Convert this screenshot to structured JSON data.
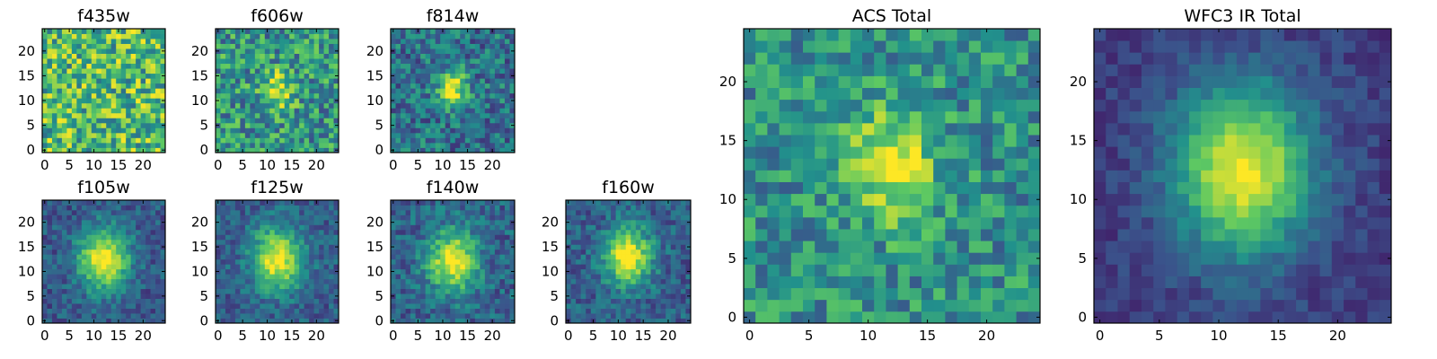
{
  "figure": {
    "colormap": "viridis",
    "colormap_stops": [
      "#440154",
      "#3b528b",
      "#21918c",
      "#5ec962",
      "#fde725"
    ],
    "background": "#ffffff"
  },
  "chart_data": [
    {
      "type": "heatmap",
      "title": "f435w",
      "grid": [
        25,
        25
      ],
      "xlim": [
        -0.5,
        24.5
      ],
      "ylim": [
        -0.5,
        24.5
      ],
      "xticks": [
        "0",
        "5",
        "10",
        "15",
        "20"
      ],
      "yticks": [
        "0",
        "5",
        "10",
        "15",
        "20"
      ],
      "source_center": [
        12,
        12
      ],
      "peak_level": 0.95,
      "background_level": 0.68,
      "noise": 0.32,
      "source_width": 0.5
    },
    {
      "type": "heatmap",
      "title": "f606w",
      "grid": [
        25,
        25
      ],
      "xlim": [
        -0.5,
        24.5
      ],
      "ylim": [
        -0.5,
        24.5
      ],
      "xticks": [
        "0",
        "5",
        "10",
        "15",
        "20"
      ],
      "yticks": [
        "0",
        "5",
        "10",
        "15",
        "20"
      ],
      "source_center": [
        12,
        12
      ],
      "peak_level": 0.95,
      "background_level": 0.52,
      "noise": 0.28,
      "source_width": 2.2
    },
    {
      "type": "heatmap",
      "title": "f814w",
      "grid": [
        25,
        25
      ],
      "xlim": [
        -0.5,
        24.5
      ],
      "ylim": [
        -0.5,
        24.5
      ],
      "xticks": [
        "0",
        "5",
        "10",
        "15",
        "20"
      ],
      "yticks": [
        "0",
        "5",
        "10",
        "15",
        "20"
      ],
      "source_center": [
        12,
        12.5
      ],
      "peak_level": 1.0,
      "background_level": 0.38,
      "noise": 0.22,
      "source_width": 2.0
    },
    {
      "type": "heatmap",
      "title": "f105w",
      "grid": [
        25,
        25
      ],
      "xlim": [
        -0.5,
        24.5
      ],
      "ylim": [
        -0.5,
        24.5
      ],
      "xticks": [
        "0",
        "5",
        "10",
        "15",
        "20"
      ],
      "yticks": [
        "0",
        "5",
        "10",
        "15",
        "20"
      ],
      "source_center": [
        12,
        12.5
      ],
      "peak_level": 1.0,
      "background_level": 0.28,
      "noise": 0.14,
      "source_width": 3.6
    },
    {
      "type": "heatmap",
      "title": "f125w",
      "grid": [
        25,
        25
      ],
      "xlim": [
        -0.5,
        24.5
      ],
      "ylim": [
        -0.5,
        24.5
      ],
      "xticks": [
        "0",
        "5",
        "10",
        "15",
        "20"
      ],
      "yticks": [
        "0",
        "5",
        "10",
        "15",
        "20"
      ],
      "source_center": [
        12,
        12.5
      ],
      "peak_level": 1.0,
      "background_level": 0.3,
      "noise": 0.14,
      "source_width": 3.5
    },
    {
      "type": "heatmap",
      "title": "f140w",
      "grid": [
        25,
        25
      ],
      "xlim": [
        -0.5,
        24.5
      ],
      "ylim": [
        -0.5,
        24.5
      ],
      "xticks": [
        "0",
        "5",
        "10",
        "15",
        "20"
      ],
      "yticks": [
        "0",
        "5",
        "10",
        "15",
        "20"
      ],
      "source_center": [
        12,
        12
      ],
      "peak_level": 1.0,
      "background_level": 0.32,
      "noise": 0.16,
      "source_width": 3.4
    },
    {
      "type": "heatmap",
      "title": "f160w",
      "grid": [
        25,
        25
      ],
      "xlim": [
        -0.5,
        24.5
      ],
      "ylim": [
        -0.5,
        24.5
      ],
      "xticks": [
        "0",
        "5",
        "10",
        "15",
        "20"
      ],
      "yticks": [
        "0",
        "5",
        "10",
        "15",
        "20"
      ],
      "source_center": [
        12,
        13
      ],
      "peak_level": 1.0,
      "background_level": 0.3,
      "noise": 0.15,
      "source_width": 3.3
    },
    {
      "type": "heatmap",
      "title": "ACS Total",
      "grid": [
        25,
        25
      ],
      "xlim": [
        -0.5,
        24.5
      ],
      "ylim": [
        -0.5,
        24.5
      ],
      "xticks": [
        "0",
        "5",
        "10",
        "15",
        "20"
      ],
      "yticks": [
        "0",
        "5",
        "10",
        "15",
        "20"
      ],
      "source_center": [
        12,
        13
      ],
      "peak_level": 1.0,
      "background_level": 0.5,
      "noise": 0.22,
      "source_width": 2.6
    },
    {
      "type": "heatmap",
      "title": "WFC3 IR Total",
      "grid": [
        25,
        25
      ],
      "xlim": [
        -0.5,
        24.5
      ],
      "ylim": [
        -0.5,
        24.5
      ],
      "xticks": [
        "0",
        "5",
        "10",
        "15",
        "20"
      ],
      "yticks": [
        "0",
        "5",
        "10",
        "15",
        "20"
      ],
      "source_center": [
        12,
        12.5
      ],
      "peak_level": 1.0,
      "background_level": 0.18,
      "noise": 0.08,
      "source_width": 4.0
    }
  ]
}
